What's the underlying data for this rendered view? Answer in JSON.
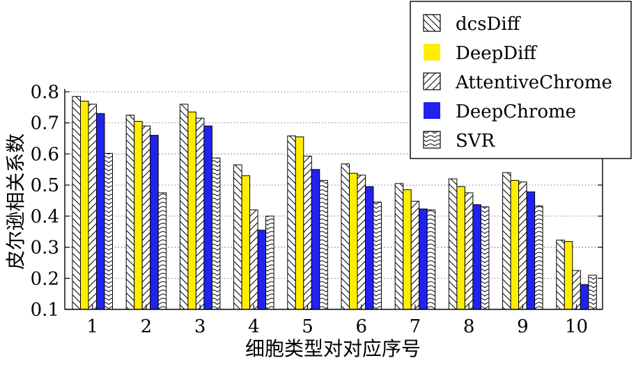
{
  "chart_data": {
    "type": "bar",
    "xlabel": "细胞类型对对应序号",
    "ylabel": "皮尔逊相关系数",
    "ylim": [
      0.1,
      0.8
    ],
    "yticks": [
      "0.1",
      "0.2",
      "0.3",
      "0.4",
      "0.5",
      "0.6",
      "0.7",
      "0.8"
    ],
    "categories": [
      "1",
      "2",
      "3",
      "4",
      "5",
      "6",
      "7",
      "8",
      "9",
      "10"
    ],
    "grid": "horizontal dotted",
    "legend_position": "top-right",
    "series": [
      {
        "name": "dcsDiff",
        "pattern": "hatch-backslash",
        "color": "#ffffff",
        "values": [
          0.785,
          0.725,
          0.76,
          0.565,
          0.658,
          0.568,
          0.505,
          0.52,
          0.54,
          0.323
        ]
      },
      {
        "name": "DeepDiff",
        "pattern": "solid",
        "color": "#ffee00",
        "values": [
          0.77,
          0.705,
          0.735,
          0.53,
          0.655,
          0.538,
          0.485,
          0.495,
          0.515,
          0.318
        ]
      },
      {
        "name": "AttentiveChrome",
        "pattern": "hatch-slash",
        "color": "#ffffff",
        "values": [
          0.76,
          0.69,
          0.715,
          0.42,
          0.593,
          0.532,
          0.448,
          0.475,
          0.51,
          0.225
        ]
      },
      {
        "name": "DeepChrome",
        "pattern": "solid",
        "color": "#2222ee",
        "values": [
          0.73,
          0.66,
          0.69,
          0.355,
          0.55,
          0.495,
          0.423,
          0.437,
          0.478,
          0.18
        ]
      },
      {
        "name": "SVR",
        "pattern": "scallop",
        "color": "#ffffff",
        "values": [
          0.602,
          0.475,
          0.587,
          0.4,
          0.515,
          0.445,
          0.42,
          0.43,
          0.433,
          0.21
        ]
      }
    ]
  }
}
